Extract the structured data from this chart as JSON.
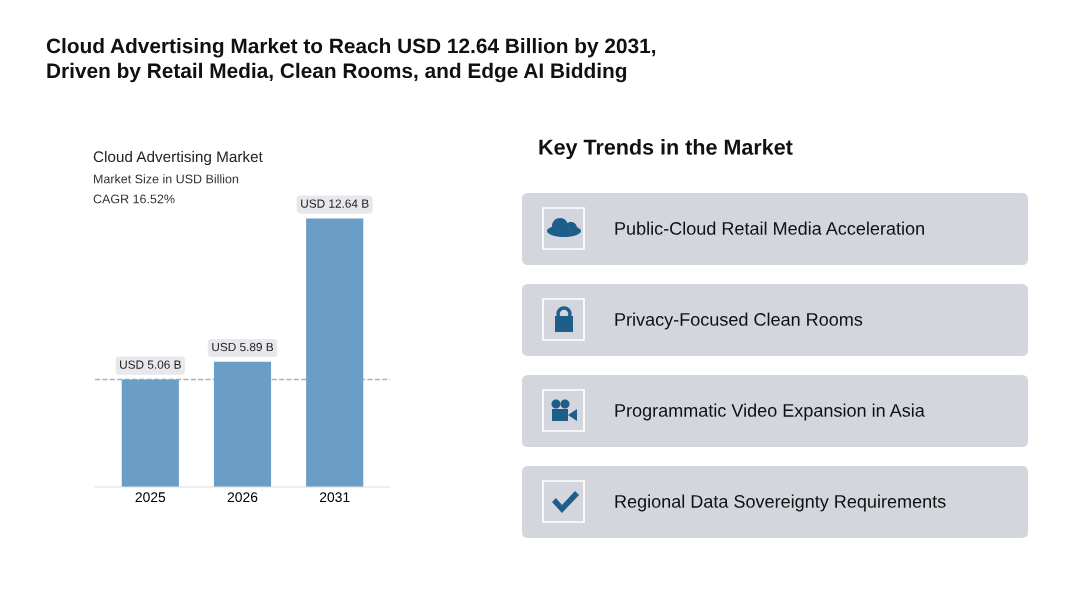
{
  "chart_data": [
    {
      "type": "other",
      "title": "Cloud Advertising Market to Reach USD 12.64 Billion by 2031,\nDriven by Retail Media, Clean Rooms, and Edge AI Bidding"
    },
    {
      "type": "bar",
      "title": "Cloud Advertising Market",
      "subtitle": "Market Size in USD Billion",
      "annotations": [
        "CAGR 16.52%"
      ],
      "categories": [
        "2025",
        "2026",
        "2031"
      ],
      "values": [
        5.06,
        5.89,
        12.64
      ],
      "value_labels": [
        "USD 5.06 B",
        "USD 5.89 B",
        "USD 12.64 B"
      ],
      "color": "#6b9ec6",
      "ref_lines": [
        {
          "axis": "y",
          "value": 5.06,
          "color": "#9fb4c6",
          "line_style": "dashed"
        }
      ],
      "grid": false,
      "legend": false
    },
    {
      "type": "other",
      "title": "Key Trends in the Market",
      "annotations": [
        "Public-Cloud Retail Media Acceleration",
        "Privacy-Focused Clean Rooms",
        "Programmatic Video Expansion in Asia",
        "Regional Data Sovereignty Requirements"
      ]
    }
  ]
}
